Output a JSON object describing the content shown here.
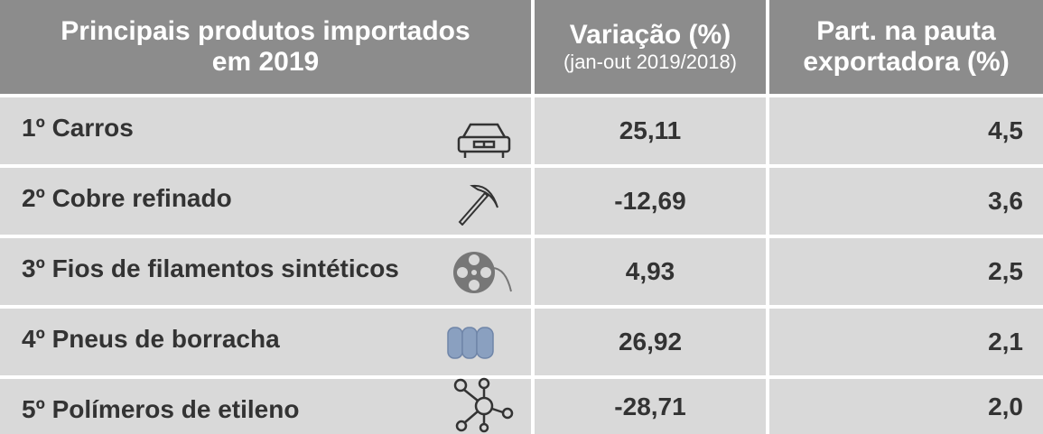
{
  "table": {
    "header": [
      {
        "text": "Principais produtos importados em 2019"
      },
      {
        "text": "Variação (%)",
        "note": "(jan-out 2019/2018)"
      },
      {
        "text": "Part. na pauta exportadora (%)"
      }
    ],
    "rows": [
      [
        "1º Carros",
        "25,11",
        "4,5"
      ],
      [
        "2º Cobre refinado",
        "-12,69",
        "3,6"
      ],
      [
        "3º Fios de filamentos sintéticos",
        "4,93",
        "2,5"
      ],
      [
        "4º Pneus de borracha",
        "26,92",
        "2,1"
      ],
      [
        "5º Polímeros de etileno",
        "-28,71",
        "2,0"
      ]
    ]
  }
}
